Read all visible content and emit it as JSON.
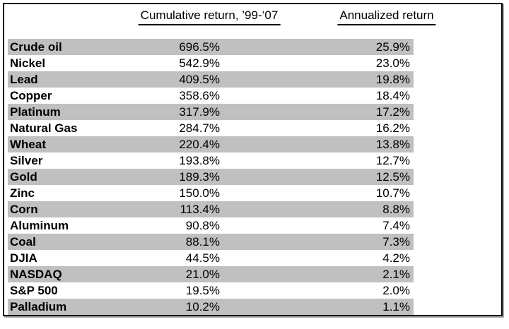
{
  "colors": {
    "background": "#ffffff",
    "row_stripe": "#c0c0c0",
    "border": "#000000",
    "text": "#000000"
  },
  "table": {
    "columns": {
      "cumulative": "Cumulative return, ’99-‘07",
      "annualized": "Annualized return"
    },
    "rows": [
      {
        "label": "Crude oil",
        "cumulative_return": "696.5%",
        "annualized_return": "25.9%"
      },
      {
        "label": "Nickel",
        "cumulative_return": "542.9%",
        "annualized_return": "23.0%"
      },
      {
        "label": "Lead",
        "cumulative_return": "409.5%",
        "annualized_return": "19.8%"
      },
      {
        "label": "Copper",
        "cumulative_return": "358.6%",
        "annualized_return": "18.4%"
      },
      {
        "label": "Platinum",
        "cumulative_return": "317.9%",
        "annualized_return": "17.2%"
      },
      {
        "label": "Natural Gas",
        "cumulative_return": "284.7%",
        "annualized_return": "16.2%"
      },
      {
        "label": "Wheat",
        "cumulative_return": "220.4%",
        "annualized_return": "13.8%"
      },
      {
        "label": "Silver",
        "cumulative_return": "193.8%",
        "annualized_return": "12.7%"
      },
      {
        "label": "Gold",
        "cumulative_return": "189.3%",
        "annualized_return": "12.5%"
      },
      {
        "label": "Zinc",
        "cumulative_return": "150.0%",
        "annualized_return": "10.7%"
      },
      {
        "label": "Corn",
        "cumulative_return": "113.4%",
        "annualized_return": "8.8%"
      },
      {
        "label": "Aluminum",
        "cumulative_return": "90.8%",
        "annualized_return": "7.4%"
      },
      {
        "label": "Coal",
        "cumulative_return": "88.1%",
        "annualized_return": "7.3%"
      },
      {
        "label": "DJIA",
        "cumulative_return": "44.5%",
        "annualized_return": "4.2%"
      },
      {
        "label": "NASDAQ",
        "cumulative_return": "21.0%",
        "annualized_return": "2.1%"
      },
      {
        "label": "S&P 500",
        "cumulative_return": "19.5%",
        "annualized_return": "2.0%"
      },
      {
        "label": "Palladium",
        "cumulative_return": "10.2%",
        "annualized_return": "1.1%"
      }
    ]
  },
  "chart_data": {
    "type": "table",
    "title": "",
    "columns": [
      "",
      "Cumulative return, ’99-‘07",
      "Annualized return"
    ],
    "rows": [
      [
        "Crude oil",
        696.5,
        25.9
      ],
      [
        "Nickel",
        542.9,
        23.0
      ],
      [
        "Lead",
        409.5,
        19.8
      ],
      [
        "Copper",
        358.6,
        18.4
      ],
      [
        "Platinum",
        317.9,
        17.2
      ],
      [
        "Natural Gas",
        284.7,
        16.2
      ],
      [
        "Wheat",
        220.4,
        13.8
      ],
      [
        "Silver",
        193.8,
        12.7
      ],
      [
        "Gold",
        189.3,
        12.5
      ],
      [
        "Zinc",
        150.0,
        10.7
      ],
      [
        "Corn",
        113.4,
        8.8
      ],
      [
        "Aluminum",
        90.8,
        7.4
      ],
      [
        "Coal",
        88.1,
        7.3
      ],
      [
        "DJIA",
        44.5,
        4.2
      ],
      [
        "NASDAQ",
        21.0,
        2.1
      ],
      [
        "S&P 500",
        19.5,
        2.0
      ],
      [
        "Palladium",
        10.2,
        1.1
      ]
    ],
    "units": "percent",
    "notes_layout": "striped rows, stripe color #c0c0c0, values right-aligned, labels bold, headers underlined"
  }
}
